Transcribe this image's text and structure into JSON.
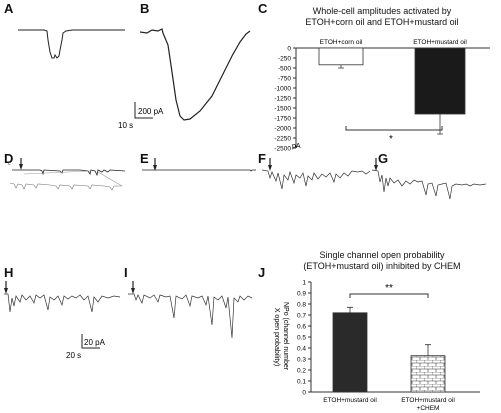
{
  "panels": {
    "A": "A",
    "B": "B",
    "C": "C",
    "D": "D",
    "E": "E",
    "F": "F",
    "G": "G",
    "H": "H",
    "I": "I",
    "J": "J"
  },
  "scalebar_top": {
    "y_label": "200 pA",
    "x_label": "10 s"
  },
  "scalebar_bottom": {
    "y_label": "20 pA",
    "x_label": "20 s"
  },
  "chart_data": [
    {
      "type": "bar",
      "panel": "C",
      "title_line1": "Whole-cell amplitudes activated by",
      "title_line2": "ETOH+corn oil and ETOH+mustard oil",
      "categories": [
        "ETOH+corn oil",
        "ETOH+mustard oil"
      ],
      "values": [
        -420,
        -1650
      ],
      "errors": [
        80,
        500
      ],
      "bar_colors": [
        "#ffffff",
        "#1a1a1a"
      ],
      "ylim": [
        -2500,
        0
      ],
      "yticks": [
        "0",
        "-250",
        "-500",
        "-750",
        "-1000",
        "-1250",
        "-1500",
        "-1750",
        "-2000",
        "-2250",
        "-2500"
      ],
      "ylabel": "pA",
      "significance": "*"
    },
    {
      "type": "bar",
      "panel": "J",
      "title_line1": "Single channel open probability",
      "title_line2": "(ETOH+mustard oil) inhibited by CHEM",
      "categories": [
        "ETOH+mustard oil",
        "ETOH+mustard oil\n+CHEM"
      ],
      "category_lines": [
        [
          "ETOH+mustard oil"
        ],
        [
          "ETOH+mustard oil",
          "+CHEM"
        ]
      ],
      "values": [
        0.72,
        0.33
      ],
      "errors": [
        0.05,
        0.1
      ],
      "ylim": [
        0,
        1
      ],
      "yticks": [
        "0",
        "0.1",
        "0.2",
        "0.3",
        "0.4",
        "0.5",
        "0.6",
        "0.7",
        "0.8",
        "0.9",
        "1"
      ],
      "ylabel_line1": "NPo (channel number",
      "ylabel_line2": "X open probability)",
      "significance": "**"
    }
  ]
}
